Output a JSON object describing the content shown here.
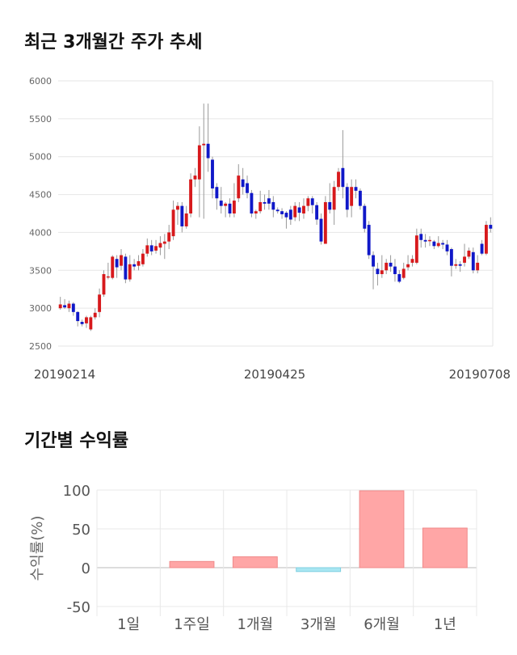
{
  "sections": {
    "price_title": "최근 3개월간 주가 추세",
    "returns_title": "기간별 수익률"
  },
  "chart_data": [
    {
      "type": "candlestick",
      "title": "최근 3개월간 주가 추세",
      "ylim": [
        2500,
        6000
      ],
      "y_ticks": [
        "6000",
        "5500",
        "5000",
        "4500",
        "4000",
        "3500",
        "3000",
        "2500"
      ],
      "x_labels": [
        "20190214",
        "20190425",
        "20190708"
      ],
      "grid": true,
      "colors": {
        "up": "#d7191c",
        "down": "#1018c8",
        "wick": "#999999"
      },
      "candles": [
        [
          3000,
          3050,
          3150,
          2980
        ],
        [
          3040,
          3010,
          3120,
          2990
        ],
        [
          3000,
          3060,
          3100,
          2950
        ],
        [
          3060,
          2950,
          3080,
          2900
        ],
        [
          2950,
          2830,
          2960,
          2760
        ],
        [
          2820,
          2790,
          2850,
          2760
        ],
        [
          2800,
          2880,
          2900,
          2740
        ],
        [
          2720,
          2880,
          2900,
          2700
        ],
        [
          2880,
          2940,
          3000,
          2850
        ],
        [
          2950,
          3180,
          3260,
          2880
        ],
        [
          3180,
          3450,
          3500,
          3150
        ],
        [
          3420,
          3420,
          3600,
          3380
        ],
        [
          3400,
          3680,
          3700,
          3380
        ],
        [
          3650,
          3540,
          3700,
          3400
        ],
        [
          3560,
          3700,
          3780,
          3500
        ],
        [
          3680,
          3380,
          3720,
          3330
        ],
        [
          3380,
          3580,
          3700,
          3350
        ],
        [
          3580,
          3550,
          3650,
          3500
        ],
        [
          3560,
          3620,
          3700,
          3500
        ],
        [
          3580,
          3720,
          3780,
          3550
        ],
        [
          3720,
          3830,
          3920,
          3680
        ],
        [
          3830,
          3750,
          3900,
          3700
        ],
        [
          3760,
          3820,
          3900,
          3720
        ],
        [
          3800,
          3860,
          3950,
          3700
        ],
        [
          3850,
          3880,
          3980,
          3650
        ],
        [
          3880,
          4000,
          4100,
          3780
        ],
        [
          3950,
          4300,
          4420,
          3900
        ],
        [
          4300,
          4350,
          4400,
          4100
        ],
        [
          4350,
          4080,
          4400,
          4000
        ],
        [
          4080,
          4250,
          4350,
          4050
        ],
        [
          4250,
          4700,
          4780,
          4200
        ],
        [
          4700,
          4750,
          4850,
          4600
        ],
        [
          4700,
          5150,
          5400,
          4200
        ],
        [
          5150,
          5170,
          5700,
          4180
        ],
        [
          5170,
          4980,
          5700,
          4800
        ],
        [
          4960,
          4580,
          5000,
          4450
        ],
        [
          4600,
          4450,
          4650,
          4300
        ],
        [
          4420,
          4350,
          4600,
          4250
        ],
        [
          4350,
          4380,
          4400,
          4200
        ],
        [
          4380,
          4250,
          4450,
          4200
        ],
        [
          4250,
          4420,
          4650,
          4200
        ],
        [
          4450,
          4750,
          4900,
          4400
        ],
        [
          4700,
          4600,
          4850,
          4500
        ],
        [
          4650,
          4520,
          4750,
          4450
        ],
        [
          4520,
          4250,
          4560,
          4200
        ],
        [
          4250,
          4280,
          4300,
          4180
        ],
        [
          4280,
          4400,
          4550,
          4250
        ],
        [
          4400,
          4380,
          4500,
          4300
        ],
        [
          4450,
          4380,
          4560,
          4300
        ],
        [
          4400,
          4300,
          4480,
          4200
        ],
        [
          4300,
          4280,
          4330,
          4250
        ],
        [
          4280,
          4240,
          4320,
          4180
        ],
        [
          4260,
          4200,
          4280,
          4050
        ],
        [
          4300,
          4170,
          4350,
          4100
        ],
        [
          4200,
          4350,
          4400,
          4150
        ],
        [
          4330,
          4260,
          4400,
          4150
        ],
        [
          4250,
          4350,
          4450,
          4180
        ],
        [
          4350,
          4450,
          4480,
          4280
        ],
        [
          4450,
          4360,
          4480,
          4250
        ],
        [
          4360,
          4170,
          4400,
          4100
        ],
        [
          4180,
          3880,
          4250,
          3840
        ],
        [
          3850,
          4400,
          4480,
          3850
        ],
        [
          4400,
          4300,
          4650,
          4250
        ],
        [
          4300,
          4600,
          4680,
          4100
        ],
        [
          4600,
          4800,
          4850,
          4550
        ],
        [
          4850,
          4600,
          5350,
          4450
        ],
        [
          4600,
          4300,
          4650,
          4200
        ],
        [
          4350,
          4600,
          4700,
          4200
        ],
        [
          4600,
          4550,
          4700,
          4450
        ],
        [
          4550,
          4350,
          4580,
          4300
        ],
        [
          4350,
          4050,
          4380,
          4000
        ],
        [
          4100,
          3700,
          4150,
          3650
        ],
        [
          3700,
          3550,
          3750,
          3250
        ],
        [
          3520,
          3450,
          3600,
          3300
        ],
        [
          3450,
          3500,
          3700,
          3400
        ],
        [
          3500,
          3600,
          3650,
          3450
        ],
        [
          3600,
          3550,
          3700,
          3480
        ],
        [
          3550,
          3450,
          3650,
          3350
        ],
        [
          3450,
          3350,
          3500,
          3330
        ],
        [
          3400,
          3520,
          3600,
          3380
        ],
        [
          3540,
          3580,
          3700,
          3500
        ],
        [
          3600,
          3650,
          3700,
          3550
        ],
        [
          3600,
          3960,
          4050,
          3580
        ],
        [
          3980,
          3900,
          4050,
          3800
        ],
        [
          3900,
          3880,
          3980,
          3800
        ],
        [
          3900,
          3900,
          3950,
          3820
        ],
        [
          3880,
          3820,
          3900,
          3780
        ],
        [
          3820,
          3860,
          3950,
          3800
        ],
        [
          3860,
          3840,
          3900,
          3780
        ],
        [
          3840,
          3750,
          3900,
          3700
        ],
        [
          3780,
          3560,
          3800,
          3420
        ],
        [
          3560,
          3580,
          3650,
          3520
        ],
        [
          3580,
          3560,
          3620,
          3480
        ],
        [
          3600,
          3680,
          3850,
          3550
        ],
        [
          3680,
          3760,
          3800,
          3650
        ],
        [
          3740,
          3500,
          3800,
          3460
        ],
        [
          3500,
          3600,
          3700,
          3460
        ],
        [
          3850,
          3720,
          3900,
          3700
        ],
        [
          3720,
          4100,
          4150,
          3700
        ],
        [
          4100,
          4050,
          4200,
          4000
        ]
      ]
    },
    {
      "type": "bar",
      "title": "기간별 수익률",
      "ylabel": "수익률(%)",
      "categories": [
        "1일",
        "1주일",
        "1개월",
        "3개월",
        "6개월",
        "1년"
      ],
      "values": [
        0,
        8,
        14,
        -5,
        99,
        51
      ],
      "ylim": [
        -50,
        100
      ],
      "y_ticks": [
        "100",
        "50",
        "0",
        "-50"
      ],
      "grid": true,
      "colors": {
        "positive": "#ffa6a6",
        "negative": "#a8e6f2"
      }
    }
  ]
}
